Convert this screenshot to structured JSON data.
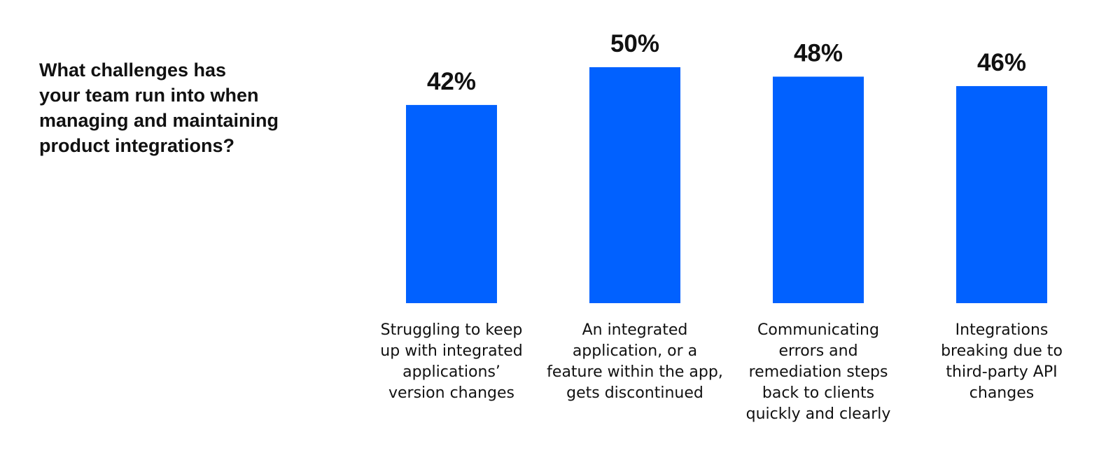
{
  "question": "What challenges has\nyour team run into when\nmanaging and maintaining\nproduct integrations?",
  "colors": {
    "bar": "#0161ff",
    "text": "#111111",
    "background": "#ffffff"
  },
  "chart_data": {
    "type": "bar",
    "title": "",
    "xlabel": "",
    "ylabel": "",
    "ylim": [
      0,
      50
    ],
    "grid": false,
    "legend": "none",
    "categories": [
      [
        "Struggling to keep",
        "up with integrated",
        "applications’",
        "version changes"
      ],
      [
        "An integrated",
        "application, or a",
        "feature within the app,",
        "gets discontinued"
      ],
      [
        "Communicating",
        "errors and",
        "remediation steps",
        "back to clients",
        "quickly and clearly"
      ],
      [
        "Integrations",
        "breaking due to",
        "third-party API",
        "changes"
      ]
    ],
    "values": [
      42,
      50,
      48,
      46
    ],
    "value_labels": [
      "42%",
      "50%",
      "48%",
      "46%"
    ]
  }
}
